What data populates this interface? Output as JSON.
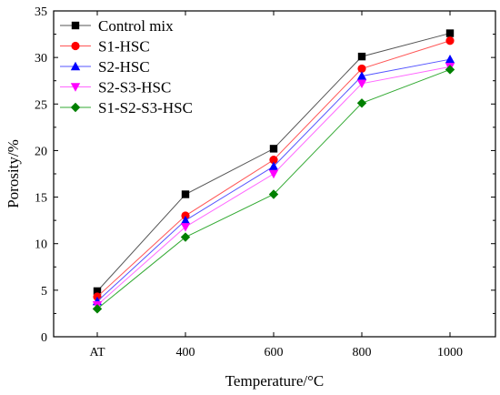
{
  "chart_data": {
    "type": "line",
    "categories": [
      "AT",
      "400",
      "600",
      "800",
      "1000"
    ],
    "xlabel": "Temperature/°C",
    "ylabel": "Porosity/%",
    "ylim": [
      0,
      35
    ],
    "yticks": [
      "0",
      "5",
      "10",
      "15",
      "20",
      "25",
      "30",
      "35"
    ],
    "grid": false,
    "legend_position": "top-left",
    "series": [
      {
        "name": "Control mix",
        "marker": "square",
        "color": "#000000",
        "line_color": "#555555",
        "values": [
          4.9,
          15.3,
          20.2,
          30.1,
          32.6
        ]
      },
      {
        "name": "S1-HSC",
        "marker": "circle",
        "color": "#ff0000",
        "line_color": "#ff5555",
        "values": [
          4.3,
          13.0,
          19.0,
          28.8,
          31.8
        ]
      },
      {
        "name": "S2-HSC",
        "marker": "triangle-up",
        "color": "#0000ff",
        "line_color": "#5555ff",
        "values": [
          3.8,
          12.5,
          18.3,
          28.0,
          29.8
        ]
      },
      {
        "name": "S2-S3-HSC",
        "marker": "triangle-down",
        "color": "#ff00ff",
        "line_color": "#ff66ff",
        "values": [
          3.4,
          11.8,
          17.5,
          27.2,
          29.0
        ]
      },
      {
        "name": "S1-S2-S3-HSC",
        "marker": "diamond",
        "color": "#008000",
        "line_color": "#33aa33",
        "values": [
          3.0,
          10.7,
          15.3,
          25.1,
          28.7
        ]
      }
    ]
  }
}
